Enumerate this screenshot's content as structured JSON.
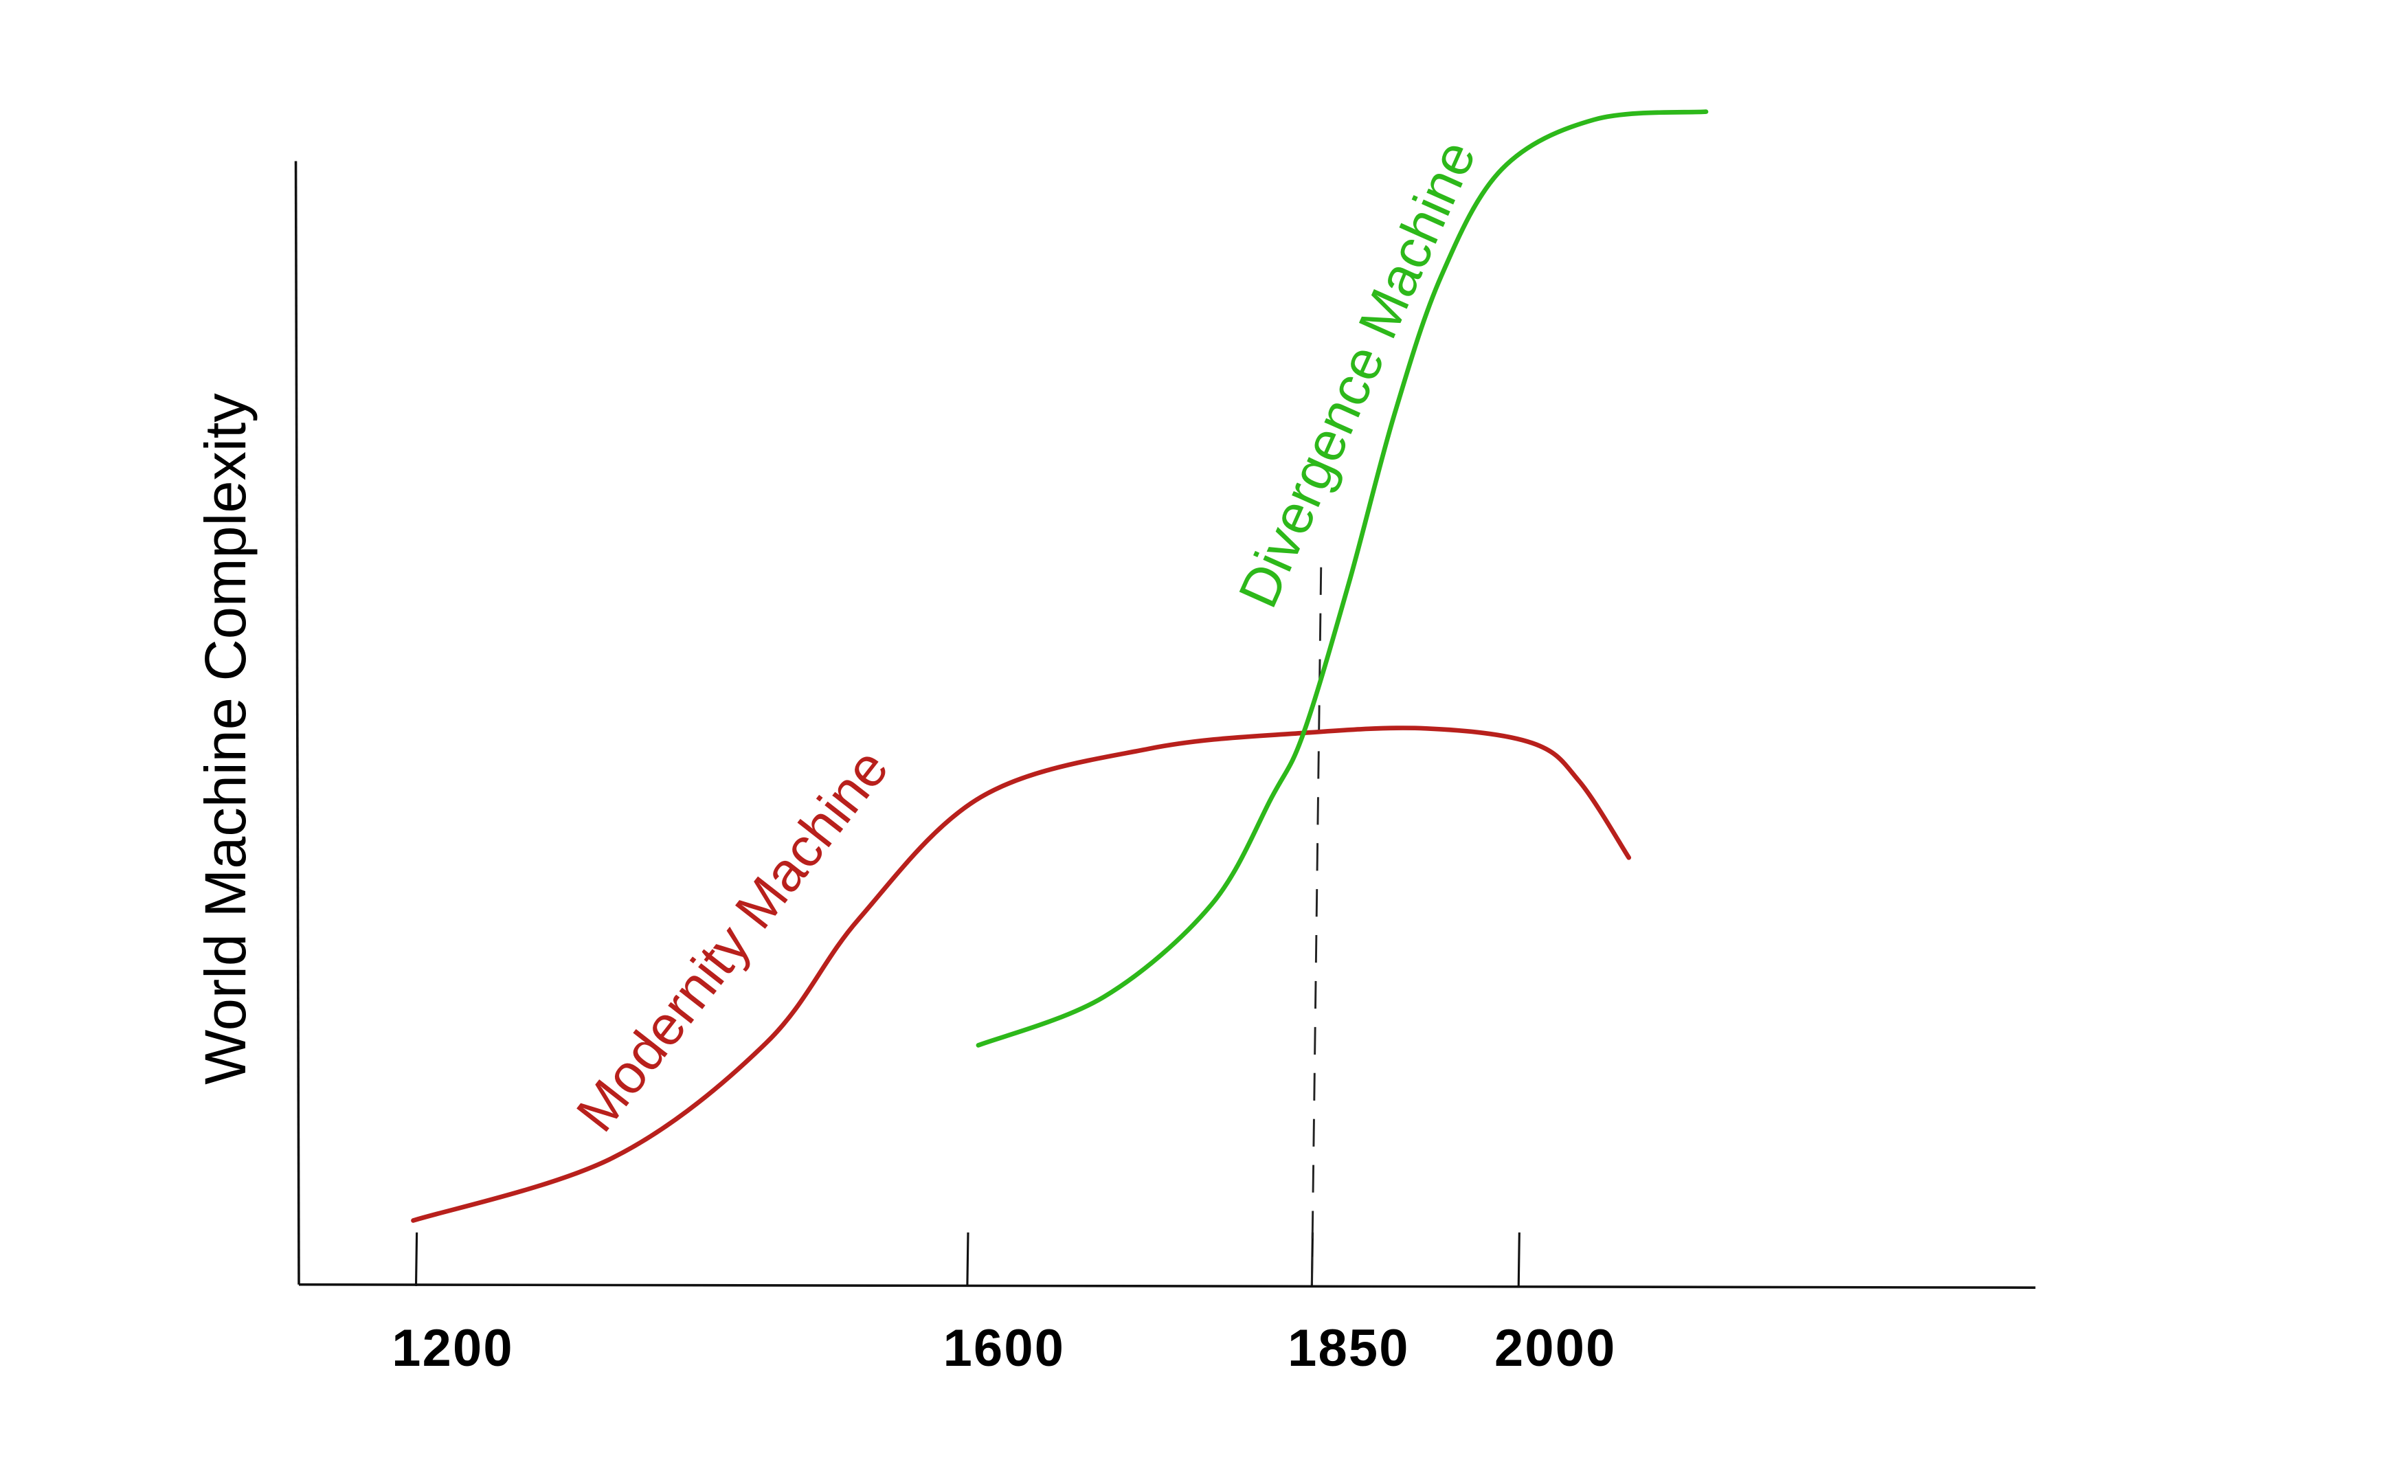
{
  "chart_data": {
    "type": "line",
    "ylabel": "World Machine Complexity",
    "xlim": [
      1115,
      2375
    ],
    "ylim": [
      0,
      100
    ],
    "xticks": [
      1200,
      1600,
      1850,
      2000
    ],
    "vline": 1850,
    "series": [
      {
        "name": "Modernity Machine",
        "color": "#b8201c",
        "x": [
          1198,
          1343,
          1454,
          1521,
          1610,
          1732,
          1844,
          1933,
          2010,
          2044,
          2080
        ],
        "values": [
          5.7,
          11.3,
          21.5,
          32.5,
          43.4,
          47.7,
          49.1,
          49.5,
          48.2,
          44.8,
          38.0
        ]
      },
      {
        "name": "Divergence Machine",
        "color": "#2db81a",
        "x": [
          1608,
          1699,
          1777,
          1821,
          1844,
          1877,
          1910,
          1944,
          1988,
          2055,
          2136
        ],
        "values": [
          21.3,
          25.6,
          33.8,
          43.4,
          49.1,
          62.5,
          77.5,
          89.8,
          99.3,
          103.7,
          104.4
        ]
      }
    ]
  }
}
